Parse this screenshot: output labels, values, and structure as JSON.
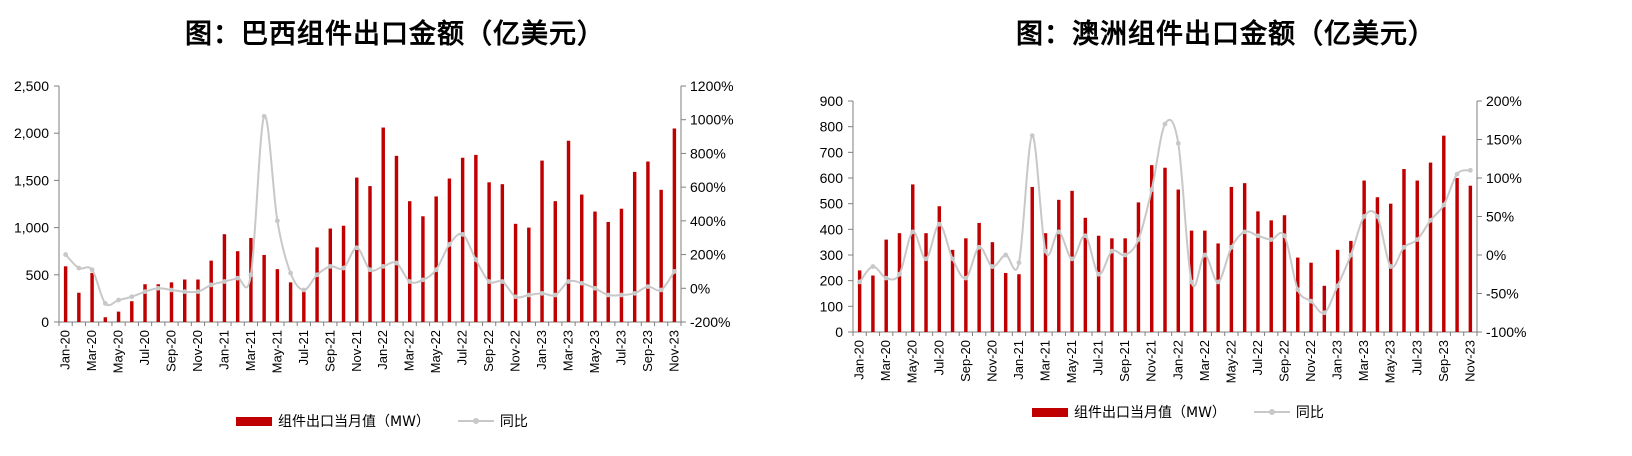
{
  "colors": {
    "bar": "#c00000",
    "line": "#c8c8c8",
    "axis": "#7f7f7f"
  },
  "chart_data": [
    {
      "type": "bar",
      "title": "图：巴西组件出口金额（亿美元）",
      "categories": [
        "Jan-20",
        "Feb-20",
        "Mar-20",
        "Apr-20",
        "May-20",
        "Jun-20",
        "Jul-20",
        "Aug-20",
        "Sep-20",
        "Oct-20",
        "Nov-20",
        "Dec-20",
        "Jan-21",
        "Feb-21",
        "Mar-21",
        "Apr-21",
        "May-21",
        "Jun-21",
        "Jul-21",
        "Aug-21",
        "Sep-21",
        "Oct-21",
        "Nov-21",
        "Dec-21",
        "Jan-22",
        "Feb-22",
        "Mar-22",
        "Apr-22",
        "May-22",
        "Jun-22",
        "Jul-22",
        "Aug-22",
        "Sep-22",
        "Oct-22",
        "Nov-22",
        "Dec-22",
        "Jan-23",
        "Feb-23",
        "Mar-23",
        "Apr-23",
        "May-23",
        "Jun-23",
        "Jul-23",
        "Aug-23",
        "Sep-23",
        "Oct-23",
        "Nov-23"
      ],
      "x_tick_labels": [
        "Jan-20",
        "Mar-20",
        "May-20",
        "Jul-20",
        "Sep-20",
        "Nov-20",
        "Jan-21",
        "Mar-21",
        "May-21",
        "Jul-21",
        "Sep-21",
        "Nov-21",
        "Jan-22",
        "Mar-22",
        "May-22",
        "Jul-22",
        "Sep-22",
        "Nov-22",
        "Jan-23",
        "Mar-23",
        "May-23",
        "Jul-23",
        "Sep-23",
        "Nov-23"
      ],
      "series": [
        {
          "name": "组件出口当月值（MW）",
          "axis": "left",
          "type": "bar",
          "values": [
            590,
            310,
            520,
            50,
            110,
            220,
            400,
            400,
            420,
            450,
            450,
            650,
            930,
            750,
            890,
            710,
            560,
            420,
            330,
            790,
            990,
            1020,
            1530,
            1440,
            2060,
            1760,
            1280,
            1120,
            1330,
            1520,
            1740,
            1770,
            1480,
            1460,
            1040,
            1000,
            1710,
            1280,
            1920,
            1350,
            1170,
            1060,
            1200,
            1590,
            1700,
            1400,
            2050
          ]
        },
        {
          "name": "同比",
          "axis": "right",
          "type": "line",
          "values": [
            200,
            120,
            110,
            -90,
            -70,
            -50,
            -20,
            0,
            -10,
            -20,
            -20,
            20,
            40,
            60,
            80,
            1020,
            400,
            90,
            -10,
            80,
            130,
            120,
            240,
            110,
            130,
            150,
            40,
            50,
            110,
            260,
            320,
            170,
            40,
            40,
            -50,
            -40,
            -30,
            -40,
            40,
            30,
            0,
            -40,
            -40,
            -30,
            10,
            -10,
            100
          ]
        }
      ],
      "yleft": {
        "ylim": [
          0,
          2500
        ],
        "ticks": [
          "0",
          "500",
          "1,000",
          "1,500",
          "2,000",
          "2,500"
        ]
      },
      "yright": {
        "ylim": [
          -200,
          1200
        ],
        "ticks": [
          "-200%",
          "0%",
          "200%",
          "400%",
          "600%",
          "800%",
          "1000%",
          "1200%"
        ]
      },
      "legend": {
        "position": "bottom",
        "bar_label": "组件出口当月值（MW）",
        "line_label": "同比"
      }
    },
    {
      "type": "bar",
      "title": "图：澳洲组件出口金额（亿美元）",
      "categories": [
        "Jan-20",
        "Feb-20",
        "Mar-20",
        "Apr-20",
        "May-20",
        "Jun-20",
        "Jul-20",
        "Aug-20",
        "Sep-20",
        "Oct-20",
        "Nov-20",
        "Dec-20",
        "Jan-21",
        "Feb-21",
        "Mar-21",
        "Apr-21",
        "May-21",
        "Jun-21",
        "Jul-21",
        "Aug-21",
        "Sep-21",
        "Oct-21",
        "Nov-21",
        "Dec-21",
        "Jan-22",
        "Feb-22",
        "Mar-22",
        "Apr-22",
        "May-22",
        "Jun-22",
        "Jul-22",
        "Aug-22",
        "Sep-22",
        "Oct-22",
        "Nov-22",
        "Dec-22",
        "Jan-23",
        "Feb-23",
        "Mar-23",
        "Apr-23",
        "May-23",
        "Jun-23",
        "Jul-23",
        "Aug-23",
        "Sep-23",
        "Oct-23",
        "Nov-23"
      ],
      "x_tick_labels": [
        "Jan-20",
        "Mar-20",
        "May-20",
        "Jul-20",
        "Sep-20",
        "Nov-20",
        "Jan-21",
        "Mar-21",
        "May-21",
        "Jul-21",
        "Sep-21",
        "Nov-21",
        "Jan-22",
        "Mar-22",
        "May-22",
        "Jul-22",
        "Sep-22",
        "Nov-22",
        "Jan-23",
        "Mar-23",
        "May-23",
        "Jul-23",
        "Sep-23",
        "Nov-23"
      ],
      "series": [
        {
          "name": "组件出口当月值（MW）",
          "axis": "left",
          "type": "bar",
          "values": [
            240,
            220,
            360,
            385,
            575,
            385,
            490,
            320,
            365,
            425,
            350,
            230,
            225,
            565,
            385,
            515,
            550,
            445,
            375,
            365,
            365,
            505,
            650,
            640,
            555,
            395,
            395,
            345,
            565,
            580,
            470,
            435,
            455,
            290,
            270,
            180,
            320,
            355,
            590,
            525,
            500,
            635,
            590,
            660,
            765,
            600,
            570
          ]
        },
        {
          "name": "同比",
          "axis": "right",
          "type": "line",
          "values": [
            -35,
            -15,
            -30,
            -25,
            30,
            -5,
            40,
            -5,
            -30,
            10,
            -15,
            0,
            -10,
            155,
            5,
            30,
            -5,
            25,
            -25,
            5,
            0,
            20,
            85,
            170,
            145,
            -35,
            0,
            -35,
            10,
            30,
            25,
            20,
            25,
            -45,
            -60,
            -75,
            -40,
            0,
            50,
            50,
            -15,
            10,
            20,
            45,
            65,
            105,
            110
          ]
        }
      ],
      "yleft": {
        "ylim": [
          0,
          900
        ],
        "ticks": [
          "0",
          "100",
          "200",
          "300",
          "400",
          "500",
          "600",
          "700",
          "800",
          "900"
        ]
      },
      "yright": {
        "ylim": [
          -100,
          200
        ],
        "ticks": [
          "-100%",
          "-50%",
          "0%",
          "50%",
          "100%",
          "150%",
          "200%"
        ]
      },
      "legend": {
        "position": "bottom",
        "bar_label": "组件出口当月值（MW）",
        "line_label": "同比"
      }
    }
  ]
}
